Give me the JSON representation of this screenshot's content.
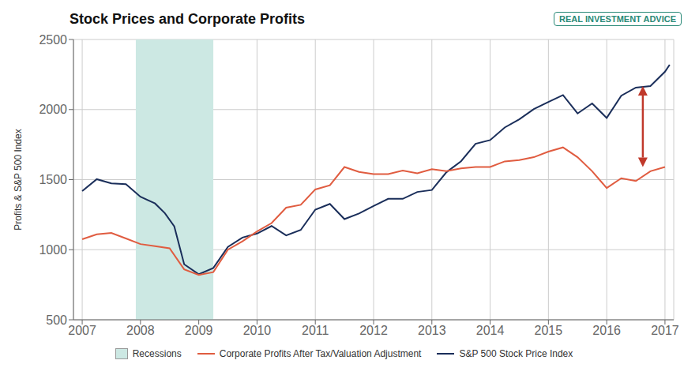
{
  "chart_data": {
    "type": "line",
    "title": "Stock Prices and Corporate Profits",
    "ylabel": "Profits & S&P 500 Index",
    "xlim": [
      2006.85,
      2017.15
    ],
    "xticks": [
      2007,
      2008,
      2009,
      2010,
      2011,
      2012,
      2013,
      2014,
      2015,
      2016,
      2017
    ],
    "ylim": [
      500,
      2500
    ],
    "yticks": [
      500,
      1000,
      1500,
      2000,
      2500
    ],
    "grid": true,
    "legend": "bottom",
    "series": [
      {
        "name": "Corporate Profits After Tax/Valuation Adjustment",
        "color": "#e05c40",
        "x": [
          2007.0,
          2007.25,
          2007.5,
          2007.75,
          2008.0,
          2008.25,
          2008.5,
          2008.75,
          2009.0,
          2009.25,
          2009.5,
          2009.75,
          2010.0,
          2010.25,
          2010.5,
          2010.75,
          2011.0,
          2011.25,
          2011.5,
          2011.75,
          2012.0,
          2012.25,
          2012.5,
          2012.75,
          2013.0,
          2013.25,
          2013.5,
          2013.75,
          2014.0,
          2014.25,
          2014.5,
          2014.75,
          2015.0,
          2015.25,
          2015.5,
          2015.75,
          2016.0,
          2016.25,
          2016.5,
          2016.75,
          2017.0
        ],
        "values": [
          1075,
          1110,
          1120,
          1080,
          1040,
          1025,
          1010,
          860,
          820,
          840,
          1000,
          1060,
          1130,
          1190,
          1300,
          1320,
          1430,
          1460,
          1590,
          1555,
          1540,
          1540,
          1565,
          1545,
          1575,
          1560,
          1580,
          1590,
          1590,
          1630,
          1640,
          1660,
          1700,
          1730,
          1660,
          1560,
          1440,
          1510,
          1490,
          1560,
          1590
        ]
      },
      {
        "name": "S&P 500 Stock Price Index",
        "color": "#1a2e5a",
        "x": [
          2007.0,
          2007.25,
          2007.5,
          2007.75,
          2008.0,
          2008.25,
          2008.42,
          2008.58,
          2008.75,
          2009.0,
          2009.25,
          2009.5,
          2009.75,
          2010.0,
          2010.25,
          2010.5,
          2010.75,
          2011.0,
          2011.25,
          2011.5,
          2011.75,
          2012.0,
          2012.25,
          2012.5,
          2012.75,
          2013.0,
          2013.25,
          2013.5,
          2013.75,
          2014.0,
          2014.25,
          2014.5,
          2014.75,
          2015.0,
          2015.25,
          2015.5,
          2015.75,
          2016.0,
          2016.25,
          2016.5,
          2016.75,
          2017.0,
          2017.08
        ],
        "values": [
          1418,
          1503,
          1473,
          1468,
          1378,
          1330,
          1260,
          1166,
          896,
          825,
          870,
          1020,
          1087,
          1115,
          1169,
          1102,
          1141,
          1286,
          1327,
          1218,
          1258,
          1312,
          1363,
          1363,
          1412,
          1426,
          1553,
          1631,
          1756,
          1782,
          1872,
          1930,
          2003,
          2054,
          2103,
          1972,
          2044,
          1940,
          2099,
          2157,
          2168,
          2270,
          2320
        ]
      }
    ],
    "annotations": [
      {
        "type": "span",
        "name": "Recessions",
        "x_start": 2007.92,
        "x_end": 2009.25,
        "color": "#cce8e3"
      },
      {
        "type": "arrow",
        "x": 2016.62,
        "y_top": 2168,
        "y_bottom": 1590,
        "color": "#c0392b"
      },
      {
        "type": "text",
        "text": "REAL INVESTMENT ADVICE"
      }
    ]
  }
}
